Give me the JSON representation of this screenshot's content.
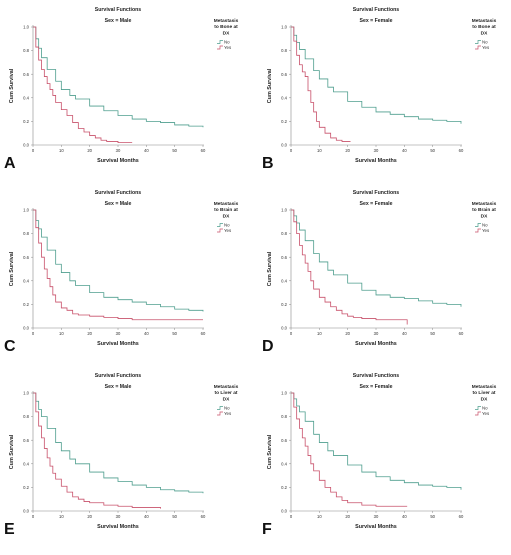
{
  "colors": {
    "no": "#4e9e8e",
    "yes": "#c8506a",
    "axis": "#888888"
  },
  "chart_data": [
    {
      "panel_letter": "A",
      "title": "Survival Functions",
      "subtitle": "Sex = Male",
      "type": "line",
      "xlabel": "Survival Months",
      "ylabel": "Cum Survival",
      "xlim": [
        0,
        60
      ],
      "ylim": [
        0,
        1.0
      ],
      "xticks": [
        "0",
        "10",
        "20",
        "30",
        "40",
        "50",
        "60"
      ],
      "yticks": [
        "0.0",
        "0.2",
        "0.4",
        "0.6",
        "0.8",
        "1.0"
      ],
      "legend_title": [
        "Metastasis",
        "to Bone at",
        "DX"
      ],
      "legend_items": [
        "No",
        "Yes"
      ],
      "series": [
        {
          "name": "No",
          "x": [
            0,
            1,
            2,
            3,
            5,
            8,
            10,
            13,
            15,
            20,
            25,
            30,
            35,
            40,
            45,
            50,
            55,
            60
          ],
          "y": [
            1.0,
            0.9,
            0.82,
            0.74,
            0.64,
            0.54,
            0.47,
            0.42,
            0.39,
            0.33,
            0.29,
            0.25,
            0.22,
            0.2,
            0.19,
            0.17,
            0.16,
            0.15
          ]
        },
        {
          "name": "Yes",
          "x": [
            0,
            1,
            2,
            3,
            4,
            5,
            6,
            7,
            8,
            10,
            12,
            14,
            16,
            18,
            20,
            22,
            24,
            26,
            30,
            35
          ],
          "y": [
            1.0,
            0.83,
            0.72,
            0.64,
            0.58,
            0.52,
            0.47,
            0.42,
            0.36,
            0.3,
            0.25,
            0.19,
            0.14,
            0.11,
            0.08,
            0.06,
            0.04,
            0.03,
            0.02,
            0.02
          ]
        }
      ]
    },
    {
      "panel_letter": "B",
      "title": "Survival Functions",
      "subtitle": "Sex = Female",
      "type": "line",
      "xlabel": "Survival Months",
      "ylabel": "Cum Survival",
      "xlim": [
        0,
        60
      ],
      "ylim": [
        0,
        1.0
      ],
      "xticks": [
        "0",
        "10",
        "20",
        "30",
        "40",
        "50",
        "60"
      ],
      "yticks": [
        "0.0",
        "0.2",
        "0.4",
        "0.6",
        "0.8",
        "1.0"
      ],
      "legend_title": [
        "Metastasis",
        "to Bone at",
        "DX"
      ],
      "legend_items": [
        "No",
        "Yes"
      ],
      "series": [
        {
          "name": "No",
          "x": [
            0,
            1,
            2,
            3,
            5,
            8,
            10,
            13,
            15,
            20,
            25,
            30,
            35,
            40,
            45,
            50,
            55,
            60
          ],
          "y": [
            1.0,
            0.93,
            0.87,
            0.81,
            0.73,
            0.63,
            0.56,
            0.49,
            0.45,
            0.37,
            0.32,
            0.28,
            0.26,
            0.24,
            0.22,
            0.21,
            0.2,
            0.18
          ]
        },
        {
          "name": "Yes",
          "x": [
            0,
            1,
            2,
            3,
            4,
            5,
            6,
            7,
            8,
            9,
            10,
            12,
            14,
            16,
            18,
            20,
            21
          ],
          "y": [
            1.0,
            0.88,
            0.76,
            0.68,
            0.62,
            0.58,
            0.46,
            0.36,
            0.28,
            0.2,
            0.15,
            0.1,
            0.06,
            0.04,
            0.03,
            0.03,
            0.03
          ]
        }
      ]
    },
    {
      "panel_letter": "C",
      "title": "Survival Functions",
      "subtitle": "Sex = Male",
      "type": "line",
      "xlabel": "Survival Months",
      "ylabel": "Cum Survival",
      "xlim": [
        0,
        60
      ],
      "ylim": [
        0,
        1.0
      ],
      "xticks": [
        "0",
        "10",
        "20",
        "30",
        "40",
        "50",
        "60"
      ],
      "yticks": [
        "0.0",
        "0.2",
        "0.4",
        "0.6",
        "0.8",
        "1.0"
      ],
      "legend_title": [
        "Metastasis",
        "to Brain at",
        "DX"
      ],
      "legend_items": [
        "No",
        "Yes"
      ],
      "series": [
        {
          "name": "No",
          "x": [
            0,
            1,
            2,
            3,
            5,
            8,
            10,
            13,
            15,
            20,
            25,
            30,
            35,
            40,
            45,
            50,
            55,
            60
          ],
          "y": [
            1.0,
            0.91,
            0.84,
            0.77,
            0.66,
            0.54,
            0.47,
            0.4,
            0.36,
            0.3,
            0.26,
            0.24,
            0.22,
            0.2,
            0.18,
            0.16,
            0.15,
            0.14
          ]
        },
        {
          "name": "Yes",
          "x": [
            0,
            1,
            2,
            3,
            4,
            5,
            6,
            7,
            8,
            10,
            12,
            14,
            16,
            20,
            25,
            30,
            35,
            40,
            45,
            50,
            55,
            60
          ],
          "y": [
            1.0,
            0.85,
            0.72,
            0.6,
            0.5,
            0.42,
            0.35,
            0.28,
            0.22,
            0.17,
            0.15,
            0.12,
            0.11,
            0.1,
            0.09,
            0.08,
            0.07,
            0.07,
            0.07,
            0.07,
            0.07,
            0.07
          ]
        }
      ]
    },
    {
      "panel_letter": "D",
      "title": "Survival Functions",
      "subtitle": "Sex = Female",
      "type": "line",
      "xlabel": "Survival Months",
      "ylabel": "Cum Survival",
      "xlim": [
        0,
        60
      ],
      "ylim": [
        0,
        1.0
      ],
      "xticks": [
        "0",
        "10",
        "20",
        "30",
        "40",
        "50",
        "60"
      ],
      "yticks": [
        "0.0",
        "0.2",
        "0.4",
        "0.6",
        "0.8",
        "1.0"
      ],
      "legend_title": [
        "Metastasis",
        "to Brain at",
        "DX"
      ],
      "legend_items": [
        "No",
        "Yes"
      ],
      "series": [
        {
          "name": "No",
          "x": [
            0,
            1,
            2,
            3,
            5,
            8,
            10,
            13,
            15,
            20,
            25,
            30,
            35,
            40,
            45,
            50,
            55,
            60
          ],
          "y": [
            1.0,
            0.95,
            0.89,
            0.83,
            0.74,
            0.63,
            0.56,
            0.49,
            0.45,
            0.38,
            0.32,
            0.28,
            0.26,
            0.25,
            0.23,
            0.21,
            0.2,
            0.18
          ]
        },
        {
          "name": "Yes",
          "x": [
            0,
            1,
            2,
            3,
            4,
            5,
            6,
            7,
            8,
            10,
            12,
            14,
            16,
            18,
            20,
            22,
            25,
            30,
            35,
            40,
            41
          ],
          "y": [
            1.0,
            0.9,
            0.8,
            0.7,
            0.62,
            0.55,
            0.48,
            0.4,
            0.33,
            0.26,
            0.22,
            0.18,
            0.15,
            0.12,
            0.1,
            0.09,
            0.08,
            0.07,
            0.07,
            0.07,
            0.03
          ]
        }
      ]
    },
    {
      "panel_letter": "E",
      "title": "Survival Functions",
      "subtitle": "Sex = Male",
      "type": "line",
      "xlabel": "Survival Months",
      "ylabel": "Cum Survival",
      "xlim": [
        0,
        60
      ],
      "ylim": [
        0,
        1.0
      ],
      "xticks": [
        "0",
        "10",
        "20",
        "30",
        "40",
        "50",
        "60"
      ],
      "yticks": [
        "0.0",
        "0.2",
        "0.4",
        "0.6",
        "0.8",
        "1.0"
      ],
      "legend_title": [
        "Metastasis",
        "to Liver at",
        "DX"
      ],
      "legend_items": [
        "No",
        "Yes"
      ],
      "series": [
        {
          "name": "No",
          "x": [
            0,
            1,
            2,
            3,
            5,
            8,
            10,
            13,
            15,
            20,
            25,
            30,
            35,
            40,
            45,
            50,
            55,
            60
          ],
          "y": [
            1.0,
            0.93,
            0.86,
            0.8,
            0.7,
            0.58,
            0.51,
            0.44,
            0.4,
            0.33,
            0.28,
            0.25,
            0.22,
            0.2,
            0.18,
            0.17,
            0.16,
            0.15
          ]
        },
        {
          "name": "Yes",
          "x": [
            0,
            1,
            2,
            3,
            4,
            5,
            6,
            7,
            8,
            10,
            12,
            14,
            16,
            18,
            20,
            25,
            30,
            35,
            40,
            45
          ],
          "y": [
            1.0,
            0.84,
            0.72,
            0.62,
            0.53,
            0.45,
            0.38,
            0.32,
            0.27,
            0.21,
            0.16,
            0.12,
            0.1,
            0.08,
            0.07,
            0.05,
            0.04,
            0.03,
            0.03,
            0.02
          ]
        }
      ]
    },
    {
      "panel_letter": "F",
      "title": "Survival Functions",
      "subtitle": "Sex = Female",
      "type": "line",
      "xlabel": "Survival Months",
      "ylabel": "Cum Survival",
      "xlim": [
        0,
        60
      ],
      "ylim": [
        0,
        1.0
      ],
      "xticks": [
        "0",
        "10",
        "20",
        "30",
        "40",
        "50",
        "60"
      ],
      "yticks": [
        "0.0",
        "0.2",
        "0.4",
        "0.6",
        "0.8",
        "1.0"
      ],
      "legend_title": [
        "Metastasis",
        "to Liver at",
        "DX"
      ],
      "legend_items": [
        "No",
        "Yes"
      ],
      "series": [
        {
          "name": "No",
          "x": [
            0,
            1,
            2,
            3,
            5,
            8,
            10,
            13,
            15,
            20,
            25,
            30,
            35,
            40,
            45,
            50,
            55,
            60
          ],
          "y": [
            1.0,
            0.95,
            0.89,
            0.84,
            0.76,
            0.65,
            0.58,
            0.51,
            0.47,
            0.39,
            0.33,
            0.29,
            0.26,
            0.24,
            0.22,
            0.21,
            0.2,
            0.18
          ]
        },
        {
          "name": "Yes",
          "x": [
            0,
            1,
            2,
            3,
            4,
            5,
            6,
            7,
            8,
            10,
            12,
            14,
            16,
            18,
            20,
            25,
            30,
            35,
            40,
            41
          ],
          "y": [
            1.0,
            0.88,
            0.78,
            0.7,
            0.62,
            0.55,
            0.47,
            0.4,
            0.34,
            0.26,
            0.2,
            0.16,
            0.12,
            0.09,
            0.07,
            0.05,
            0.04,
            0.04,
            0.04,
            0.04
          ]
        }
      ]
    }
  ]
}
